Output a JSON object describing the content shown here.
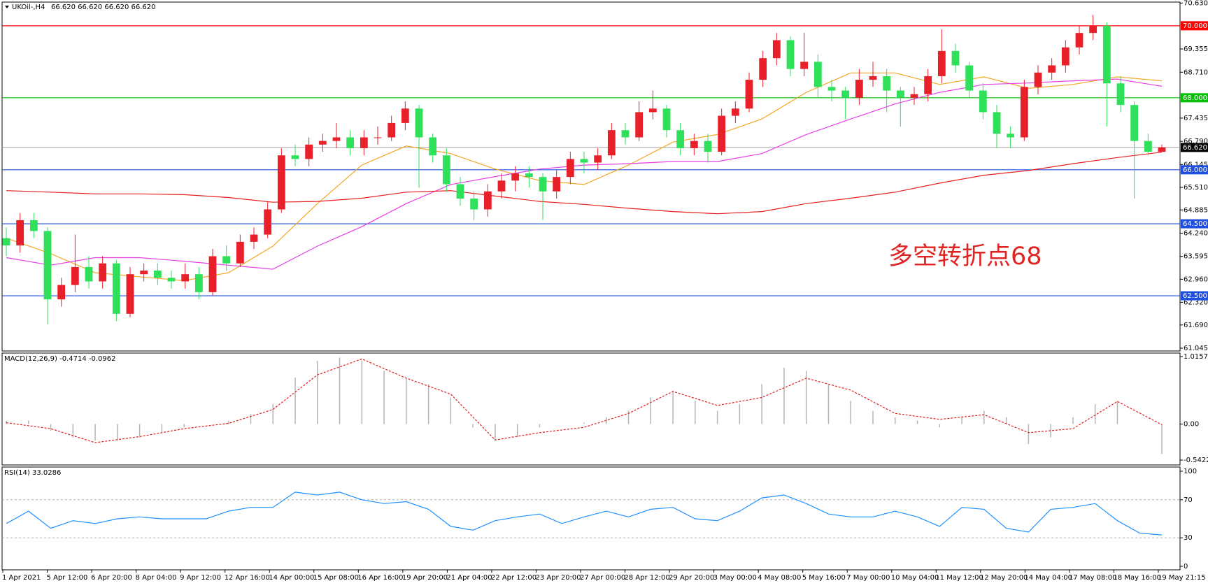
{
  "chart_data": [
    {
      "type": "candlestick",
      "title": "UKOil-,H4",
      "ohlc_text": "66.620 66.620 66.620 66.620",
      "annotation": "多空转折点68",
      "annotation_color": "#e02424",
      "up_color": "#e8202a",
      "down_color": "#2ee05a",
      "ylim": [
        61.045,
        70.63
      ],
      "yticks": [
        {
          "value": 70.63,
          "label": "70.630"
        },
        69.355,
        {
          "value": 68.71,
          "label": "68.710"
        },
        67.435,
        {
          "value": 66.79,
          "label": "66.790"
        },
        66.145,
        {
          "value": 65.51,
          "label": "65.510"
        },
        64.885,
        {
          "value": 64.24,
          "label": "64.240"
        },
        63.595,
        {
          "value": 62.96,
          "label": "62.960"
        },
        {
          "value": 62.32,
          "label": "62.320"
        },
        {
          "value": 61.69,
          "label": "61.690"
        },
        61.045
      ],
      "levels": [
        {
          "value": 70,
          "label": "70.000",
          "color": "#ff0000"
        },
        {
          "value": 68,
          "label": "68.000",
          "color": "#00c000"
        },
        {
          "value": 66,
          "label": "66.000",
          "color": "#1f4fe0"
        },
        {
          "value": 64.5,
          "label": "64.500",
          "color": "#1f4fe0"
        },
        {
          "value": 62.5,
          "label": "62.500",
          "color": "#1f4fe0"
        }
      ],
      "current": {
        "value": 66.62,
        "label": "66.620",
        "color": "#a0a0a0"
      },
      "x_labels": [
        "1 Apr 2021",
        "5 Apr 12:00",
        "6 Apr 20:00",
        "8 Apr 04:00",
        "9 Apr 12:00",
        "12 Apr 16:00",
        "14 Apr 00:00",
        "15 Apr 08:00",
        "16 Apr 16:00",
        "19 Apr 20:00",
        "21 Apr 04:00",
        "22 Apr 12:00",
        "23 Apr 20:00",
        "27 Apr 00:00",
        "28 Apr 12:00",
        "29 Apr 20:00",
        "3 May 00:00",
        "4 May 08:00",
        "5 May 16:00",
        "7 May 00:00",
        "10 May 04:00",
        "11 May 12:00",
        "12 May 20:00",
        "14 May 04:00",
        "17 May 08:00",
        "18 May 16:00",
        "19 May 21:15"
      ],
      "candles": [
        [
          64.1,
          64.4,
          63.6,
          63.9
        ],
        [
          63.9,
          64.8,
          63.7,
          64.6
        ],
        [
          64.6,
          64.8,
          64.1,
          64.3
        ],
        [
          64.3,
          64.4,
          61.7,
          62.4
        ],
        [
          62.4,
          63.0,
          62.2,
          62.8
        ],
        [
          62.8,
          64.2,
          62.6,
          63.3
        ],
        [
          63.3,
          63.6,
          62.7,
          62.9
        ],
        [
          62.9,
          63.6,
          62.7,
          63.4
        ],
        [
          63.4,
          63.5,
          61.8,
          62.0
        ],
        [
          62.0,
          63.3,
          61.9,
          63.1
        ],
        [
          63.1,
          63.4,
          62.9,
          63.2
        ],
        [
          63.2,
          63.4,
          62.8,
          63.0
        ],
        [
          63.0,
          63.2,
          62.7,
          62.9
        ],
        [
          62.9,
          63.4,
          62.7,
          63.1
        ],
        [
          63.1,
          63.3,
          62.4,
          62.6
        ],
        [
          62.6,
          63.8,
          62.5,
          63.6
        ],
        [
          63.6,
          63.9,
          63.2,
          63.4
        ],
        [
          63.4,
          64.2,
          63.3,
          64.0
        ],
        [
          64.0,
          64.4,
          63.8,
          64.2
        ],
        [
          64.2,
          65.1,
          64.1,
          64.9
        ],
        [
          64.9,
          66.6,
          64.8,
          66.4
        ],
        [
          66.4,
          66.7,
          66.1,
          66.3
        ],
        [
          66.3,
          66.9,
          66.1,
          66.7
        ],
        [
          66.7,
          67.0,
          66.5,
          66.8
        ],
        [
          66.8,
          67.3,
          66.6,
          66.9
        ],
        [
          66.9,
          67.1,
          66.4,
          66.6
        ],
        [
          66.6,
          67.1,
          66.4,
          66.9
        ],
        [
          66.9,
          67.2,
          66.7,
          66.9
        ],
        [
          66.9,
          67.5,
          66.8,
          67.3
        ],
        [
          67.3,
          67.9,
          67.1,
          67.7
        ],
        [
          67.7,
          67.8,
          65.5,
          66.9
        ],
        [
          66.9,
          67.0,
          66.2,
          66.4
        ],
        [
          66.4,
          66.6,
          65.4,
          65.6
        ],
        [
          65.6,
          65.8,
          65.0,
          65.2
        ],
        [
          65.2,
          65.4,
          64.6,
          64.9
        ],
        [
          64.9,
          65.6,
          64.7,
          65.4
        ],
        [
          65.4,
          65.9,
          65.2,
          65.7
        ],
        [
          65.7,
          66.1,
          65.4,
          65.9
        ],
        [
          65.9,
          66.1,
          65.5,
          65.8
        ],
        [
          65.8,
          65.9,
          64.6,
          65.4
        ],
        [
          65.4,
          66.0,
          65.2,
          65.8
        ],
        [
          65.8,
          66.5,
          65.6,
          66.3
        ],
        [
          66.3,
          66.5,
          65.9,
          66.2
        ],
        [
          66.2,
          66.6,
          66.0,
          66.4
        ],
        [
          66.4,
          67.3,
          66.3,
          67.1
        ],
        [
          67.1,
          67.3,
          66.7,
          66.9
        ],
        [
          66.9,
          67.9,
          66.8,
          67.6
        ],
        [
          67.6,
          68.2,
          67.4,
          67.7
        ],
        [
          67.7,
          67.8,
          66.9,
          67.1
        ],
        [
          67.1,
          67.3,
          66.4,
          66.6
        ],
        [
          66.6,
          67.0,
          66.4,
          66.8
        ],
        [
          66.8,
          67.0,
          66.2,
          66.5
        ],
        [
          66.5,
          67.7,
          66.4,
          67.5
        ],
        [
          67.5,
          67.9,
          67.3,
          67.7
        ],
        [
          67.7,
          68.7,
          67.6,
          68.5
        ],
        [
          68.5,
          69.3,
          68.3,
          69.1
        ],
        [
          69.1,
          69.8,
          68.9,
          69.6
        ],
        [
          69.6,
          69.7,
          68.6,
          68.8
        ],
        [
          68.8,
          69.8,
          68.6,
          69.0
        ],
        [
          69.0,
          69.2,
          68.0,
          68.3
        ],
        [
          68.3,
          68.5,
          67.9,
          68.2
        ],
        [
          68.2,
          68.3,
          67.4,
          68.0
        ],
        [
          68.0,
          68.8,
          67.8,
          68.5
        ],
        [
          68.5,
          69.0,
          68.3,
          68.6
        ],
        [
          68.6,
          68.8,
          67.6,
          68.2
        ],
        [
          68.2,
          68.3,
          67.2,
          68.0
        ],
        [
          68.0,
          68.3,
          67.8,
          68.1
        ],
        [
          68.1,
          68.8,
          67.9,
          68.6
        ],
        [
          68.6,
          69.9,
          68.4,
          69.3
        ],
        [
          69.3,
          69.5,
          68.7,
          68.9
        ],
        [
          68.9,
          69.0,
          68.0,
          68.2
        ],
        [
          68.2,
          68.4,
          67.4,
          67.6
        ],
        [
          67.6,
          67.8,
          66.6,
          67.0
        ],
        [
          67.0,
          67.2,
          66.6,
          66.9
        ],
        [
          66.9,
          68.5,
          66.8,
          68.3
        ],
        [
          68.3,
          68.9,
          68.1,
          68.7
        ],
        [
          68.7,
          69.1,
          68.5,
          68.9
        ],
        [
          68.9,
          69.6,
          68.7,
          69.4
        ],
        [
          69.4,
          70.0,
          69.2,
          69.8
        ],
        [
          69.8,
          70.3,
          69.6,
          70.0
        ],
        [
          70.0,
          70.1,
          67.2,
          68.4
        ],
        [
          68.4,
          68.6,
          67.6,
          67.8
        ],
        [
          67.8,
          67.9,
          65.2,
          66.8
        ],
        [
          66.8,
          67.0,
          66.4,
          66.5
        ],
        [
          66.5,
          66.7,
          66.5,
          66.62
        ]
      ],
      "moving_averages": [
        {
          "color": "#f5a623",
          "values": [
            64.1,
            63.67,
            63.14,
            63.03,
            62.92,
            63.14,
            63.88,
            65.06,
            66.13,
            66.66,
            66.45,
            66.02,
            65.7,
            65.59,
            66.13,
            66.77,
            66.98,
            67.41,
            68.15,
            68.69,
            68.69,
            68.37,
            68.58,
            68.26,
            68.37,
            68.58,
            68.47
          ]
        },
        {
          "color": "#e83ee8",
          "values": [
            63.56,
            63.35,
            63.56,
            63.56,
            63.46,
            63.35,
            63.24,
            63.88,
            64.42,
            65.06,
            65.59,
            65.81,
            66.02,
            66.13,
            66.17,
            66.23,
            66.23,
            66.45,
            66.98,
            67.41,
            67.83,
            68.15,
            68.37,
            68.41,
            68.47,
            68.52,
            68.32
          ]
        },
        {
          "color": "#e82020",
          "values": [
            65.42,
            65.38,
            65.33,
            65.33,
            65.31,
            65.23,
            65.1,
            65.12,
            65.21,
            65.38,
            65.42,
            65.27,
            65.12,
            65.04,
            64.93,
            64.84,
            64.78,
            64.84,
            65.06,
            65.21,
            65.38,
            65.63,
            65.85,
            65.98,
            66.17,
            66.34,
            66.49
          ]
        }
      ]
    },
    {
      "type": "macd",
      "title": "MACD(12,26,9) -0.4714 -0.0962",
      "ylim": [
        -0.5422,
        1.0157
      ],
      "yticks": [
        1.0157,
        {
          "value": 0,
          "label": "0.00"
        },
        -0.5422
      ],
      "histogram_color": "#b4b4b4",
      "signal_color": "#e02020",
      "histogram": [
        0.05,
        0.05,
        -0.1,
        -0.2,
        -0.25,
        -0.25,
        -0.2,
        -0.12,
        -0.05,
        0.0,
        0.05,
        0.15,
        0.3,
        0.7,
        0.95,
        1.0,
        0.95,
        0.8,
        0.7,
        0.6,
        0.4,
        -0.05,
        -0.25,
        -0.2,
        -0.05,
        0.0,
        0.02,
        0.1,
        0.2,
        0.4,
        0.5,
        0.35,
        0.2,
        0.3,
        0.6,
        0.85,
        0.8,
        0.6,
        0.35,
        0.2,
        0.1,
        0.05,
        -0.05,
        0.1,
        0.2,
        0.1,
        -0.3,
        -0.2,
        0.1,
        0.3,
        0.35,
        0.0,
        -0.45
      ],
      "signal": [
        0.02,
        -0.07,
        -0.28,
        -0.19,
        -0.07,
        0.01,
        0.22,
        0.74,
        0.98,
        0.69,
        0.45,
        -0.24,
        -0.13,
        -0.05,
        0.16,
        0.49,
        0.28,
        0.4,
        0.69,
        0.51,
        0.16,
        0.07,
        0.14,
        -0.13,
        -0.07,
        0.34,
        -0.01
      ]
    },
    {
      "type": "rsi",
      "title": "RSI(14) 33.0286",
      "ylim": [
        0,
        100
      ],
      "yticks": [
        100,
        70,
        30,
        0
      ],
      "levels": [
        70,
        30
      ],
      "color": "#1e90ff",
      "values": [
        45,
        58,
        40,
        48,
        45,
        50,
        52,
        50,
        50,
        50,
        58,
        62,
        62,
        78,
        75,
        78,
        70,
        66,
        68,
        60,
        42,
        38,
        48,
        52,
        55,
        45,
        52,
        58,
        52,
        60,
        62,
        50,
        48,
        58,
        72,
        75,
        66,
        55,
        52,
        52,
        58,
        52,
        42,
        62,
        60,
        40,
        36,
        60,
        62,
        66,
        48,
        35,
        33.0286
      ]
    }
  ]
}
